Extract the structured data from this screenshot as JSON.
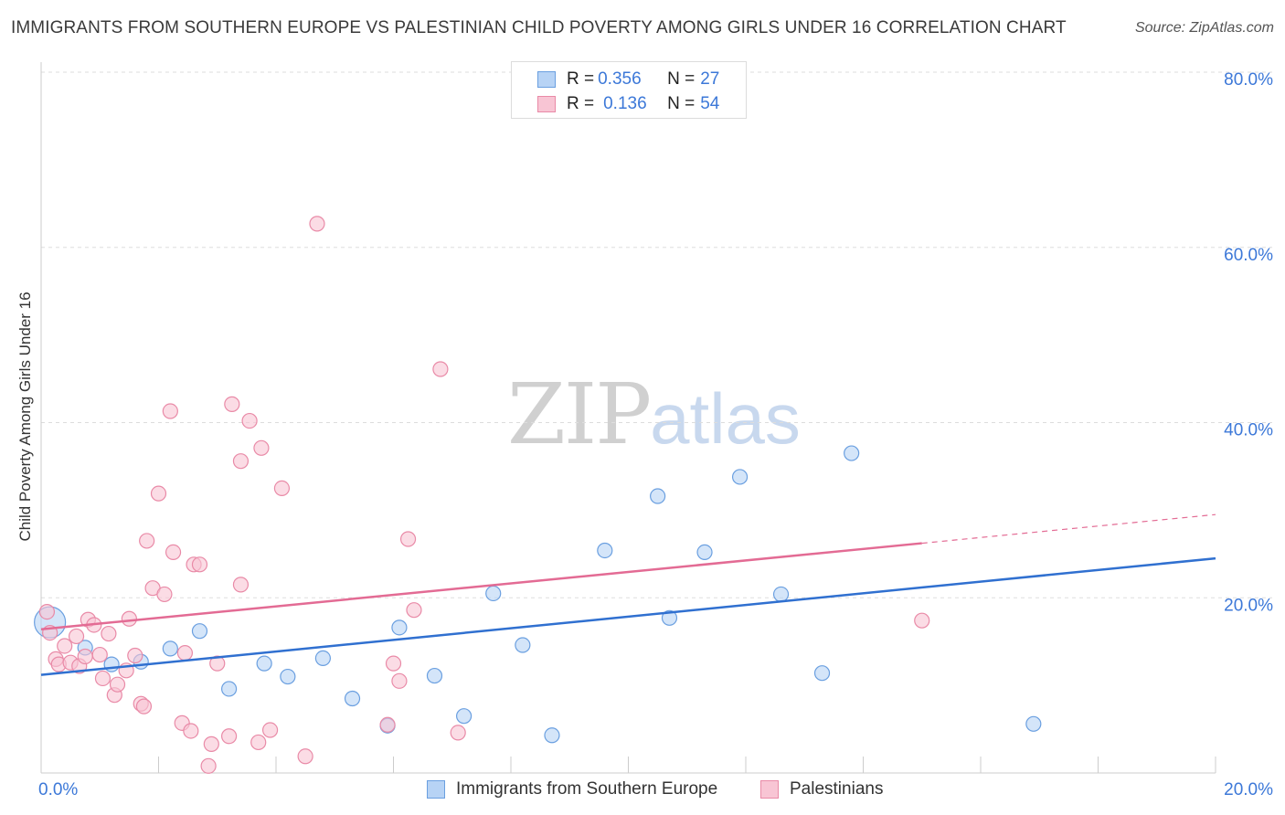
{
  "title": "IMMIGRANTS FROM SOUTHERN EUROPE VS PALESTINIAN CHILD POVERTY AMONG GIRLS UNDER 16 CORRELATION CHART",
  "source": "Source: ZipAtlas.com",
  "watermark": {
    "zip": "ZIP",
    "atlas": "atlas"
  },
  "legend_top": {
    "rows": [
      {
        "r_label": "R = ",
        "r_value": "0.356",
        "n_label": "N = ",
        "n_value": "27"
      },
      {
        "r_label": "R = ",
        "r_value": "0.136",
        "n_label": "N = ",
        "n_value": "54"
      }
    ]
  },
  "colors": {
    "blue_fill": "#b7d3f5",
    "blue_stroke": "#6a9fe0",
    "blue_line": "#3070d0",
    "pink_fill": "#f8c5d4",
    "pink_stroke": "#e98aa7",
    "pink_line": "#e36b94",
    "tick_label": "#3c78d8",
    "grid": "#dddddd"
  },
  "chart_data": {
    "type": "scatter",
    "title": "IMMIGRANTS FROM SOUTHERN EUROPE VS PALESTINIAN CHILD POVERTY AMONG GIRLS UNDER 16 CORRELATION CHART",
    "xlabel": "",
    "ylabel": "Child Poverty Among Girls Under 16",
    "xlim": [
      0,
      20
    ],
    "ylim": [
      0,
      80
    ],
    "x_tick_labels": [
      {
        "value": 0,
        "label": "0.0%"
      },
      {
        "value": 20,
        "label": "20.0%"
      }
    ],
    "y_tick_labels": [
      {
        "value": 20,
        "label": "20.0%"
      },
      {
        "value": 40,
        "label": "40.0%"
      },
      {
        "value": 60,
        "label": "60.0%"
      },
      {
        "value": 80,
        "label": "80.0%"
      }
    ],
    "series": [
      {
        "name": "Immigrants from Southern Europe",
        "color": "blue",
        "R": 0.356,
        "N": 27,
        "trend": {
          "x": [
            0,
            20
          ],
          "y": [
            11.2,
            24.5
          ],
          "dashed_from": null
        },
        "points": [
          {
            "x": 0.15,
            "y": 17.2,
            "big": true
          },
          {
            "x": 0.75,
            "y": 14.3
          },
          {
            "x": 1.2,
            "y": 12.4
          },
          {
            "x": 1.7,
            "y": 12.7
          },
          {
            "x": 2.2,
            "y": 14.2
          },
          {
            "x": 2.7,
            "y": 16.2
          },
          {
            "x": 3.2,
            "y": 9.6
          },
          {
            "x": 3.8,
            "y": 12.5
          },
          {
            "x": 4.2,
            "y": 11.0
          },
          {
            "x": 4.8,
            "y": 13.1
          },
          {
            "x": 5.3,
            "y": 8.5
          },
          {
            "x": 5.9,
            "y": 5.4
          },
          {
            "x": 6.1,
            "y": 16.6
          },
          {
            "x": 6.7,
            "y": 11.1
          },
          {
            "x": 7.2,
            "y": 6.5
          },
          {
            "x": 7.7,
            "y": 20.5
          },
          {
            "x": 8.2,
            "y": 14.6
          },
          {
            "x": 8.7,
            "y": 4.3
          },
          {
            "x": 9.6,
            "y": 25.4
          },
          {
            "x": 10.5,
            "y": 31.6
          },
          {
            "x": 10.7,
            "y": 17.7
          },
          {
            "x": 11.3,
            "y": 25.2
          },
          {
            "x": 11.9,
            "y": 33.8
          },
          {
            "x": 12.6,
            "y": 20.4
          },
          {
            "x": 13.3,
            "y": 11.4
          },
          {
            "x": 13.8,
            "y": 36.5
          },
          {
            "x": 16.9,
            "y": 5.6
          }
        ]
      },
      {
        "name": "Palestinians",
        "color": "pink",
        "R": 0.136,
        "N": 54,
        "trend": {
          "x": [
            0,
            20
          ],
          "y": [
            16.4,
            29.5
          ],
          "dashed_from": 15.0
        },
        "points": [
          {
            "x": 0.1,
            "y": 18.4
          },
          {
            "x": 0.15,
            "y": 16.0
          },
          {
            "x": 0.25,
            "y": 13.0
          },
          {
            "x": 0.3,
            "y": 12.4
          },
          {
            "x": 0.4,
            "y": 14.5
          },
          {
            "x": 0.5,
            "y": 12.6
          },
          {
            "x": 0.6,
            "y": 15.6
          },
          {
            "x": 0.65,
            "y": 12.2
          },
          {
            "x": 0.75,
            "y": 13.3
          },
          {
            "x": 0.8,
            "y": 17.5
          },
          {
            "x": 0.9,
            "y": 16.9
          },
          {
            "x": 1.0,
            "y": 13.5
          },
          {
            "x": 1.05,
            "y": 10.8
          },
          {
            "x": 1.15,
            "y": 15.9
          },
          {
            "x": 1.25,
            "y": 8.9
          },
          {
            "x": 1.3,
            "y": 10.1
          },
          {
            "x": 1.45,
            "y": 11.7
          },
          {
            "x": 1.5,
            "y": 17.6
          },
          {
            "x": 1.6,
            "y": 13.4
          },
          {
            "x": 1.7,
            "y": 7.9
          },
          {
            "x": 1.75,
            "y": 7.6
          },
          {
            "x": 1.8,
            "y": 26.5
          },
          {
            "x": 1.9,
            "y": 21.1
          },
          {
            "x": 2.0,
            "y": 31.9
          },
          {
            "x": 2.1,
            "y": 20.4
          },
          {
            "x": 2.2,
            "y": 41.3
          },
          {
            "x": 2.25,
            "y": 25.2
          },
          {
            "x": 2.4,
            "y": 5.7
          },
          {
            "x": 2.45,
            "y": 13.7
          },
          {
            "x": 2.55,
            "y": 4.8
          },
          {
            "x": 2.6,
            "y": 23.8
          },
          {
            "x": 2.7,
            "y": 23.8
          },
          {
            "x": 2.85,
            "y": 0.8
          },
          {
            "x": 2.9,
            "y": 3.3
          },
          {
            "x": 3.0,
            "y": 12.5
          },
          {
            "x": 3.2,
            "y": 4.2
          },
          {
            "x": 3.25,
            "y": 42.1
          },
          {
            "x": 3.4,
            "y": 21.5
          },
          {
            "x": 3.4,
            "y": 35.6
          },
          {
            "x": 3.55,
            "y": 40.2
          },
          {
            "x": 3.7,
            "y": 3.5
          },
          {
            "x": 3.75,
            "y": 37.1
          },
          {
            "x": 3.9,
            "y": 4.9
          },
          {
            "x": 4.1,
            "y": 32.5
          },
          {
            "x": 4.5,
            "y": 1.9
          },
          {
            "x": 4.7,
            "y": 62.7
          },
          {
            "x": 5.9,
            "y": 5.5
          },
          {
            "x": 6.0,
            "y": 12.5
          },
          {
            "x": 6.1,
            "y": 10.5
          },
          {
            "x": 6.25,
            "y": 26.7
          },
          {
            "x": 6.35,
            "y": 18.6
          },
          {
            "x": 6.8,
            "y": 46.1
          },
          {
            "x": 7.1,
            "y": 4.6
          },
          {
            "x": 15.0,
            "y": 17.4
          }
        ]
      }
    ]
  },
  "bottom_legend": [
    {
      "label": "Immigrants from Southern Europe"
    },
    {
      "label": "Palestinians"
    }
  ]
}
